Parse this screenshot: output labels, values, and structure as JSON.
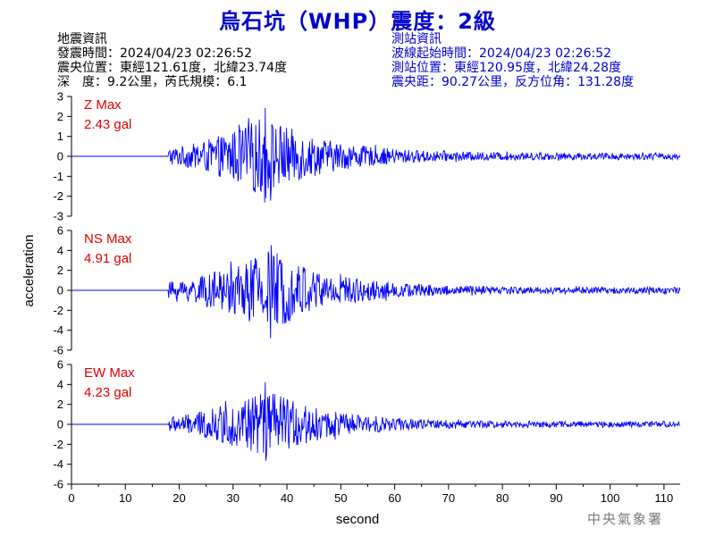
{
  "title": "烏石坑（WHP）震度：2級",
  "quake_info": {
    "heading": "地震資訊",
    "time": "發震時間：2024/04/23 02:26:52",
    "location": "震央位置：東經121.61度，北緯23.74度",
    "depth_mag": "深　度：9.2公里，芮氏規模：6.1"
  },
  "station_info": {
    "heading": "測站資訊",
    "wave_time": "波線起始時間：2024/04/23 02:26:52",
    "location": "測站位置：東經120.95度，北緯24.28度",
    "distance": "震央距：90.27公里，反方位角：131.28度"
  },
  "stamp": "中央氣象署",
  "colors": {
    "title": "#0000cc",
    "trace": "#0000ff",
    "max_label": "#e00000",
    "station_info": "#0000cc"
  },
  "chart_data": {
    "type": "line",
    "xlabel": "second",
    "ylabel": "acceleration",
    "xlim": [
      0,
      113
    ],
    "xticks": [
      0,
      10,
      20,
      30,
      40,
      50,
      60,
      70,
      80,
      90,
      100,
      110
    ],
    "grid": false,
    "panels": [
      {
        "component": "Z",
        "max_label": "Z Max",
        "max_value": "2.43 gal",
        "peak": 2.43,
        "ylim": [
          -3,
          3
        ],
        "yticks": [
          -3,
          -2,
          -1,
          0,
          1,
          2,
          3
        ],
        "onset_s": 18,
        "peak_time_s": 36
      },
      {
        "component": "NS",
        "max_label": "NS Max",
        "max_value": "4.91 gal",
        "peak": 4.91,
        "ylim": [
          -6,
          6
        ],
        "yticks": [
          -6,
          -4,
          -2,
          0,
          2,
          4,
          6
        ],
        "onset_s": 18,
        "peak_time_s": 37
      },
      {
        "component": "EW",
        "max_label": "EW Max",
        "max_value": "4.23 gal",
        "peak": 4.23,
        "ylim": [
          -6,
          6
        ],
        "yticks": [
          -6,
          -4,
          -2,
          0,
          2,
          4,
          6
        ],
        "onset_s": 18,
        "peak_time_s": 36
      }
    ]
  }
}
